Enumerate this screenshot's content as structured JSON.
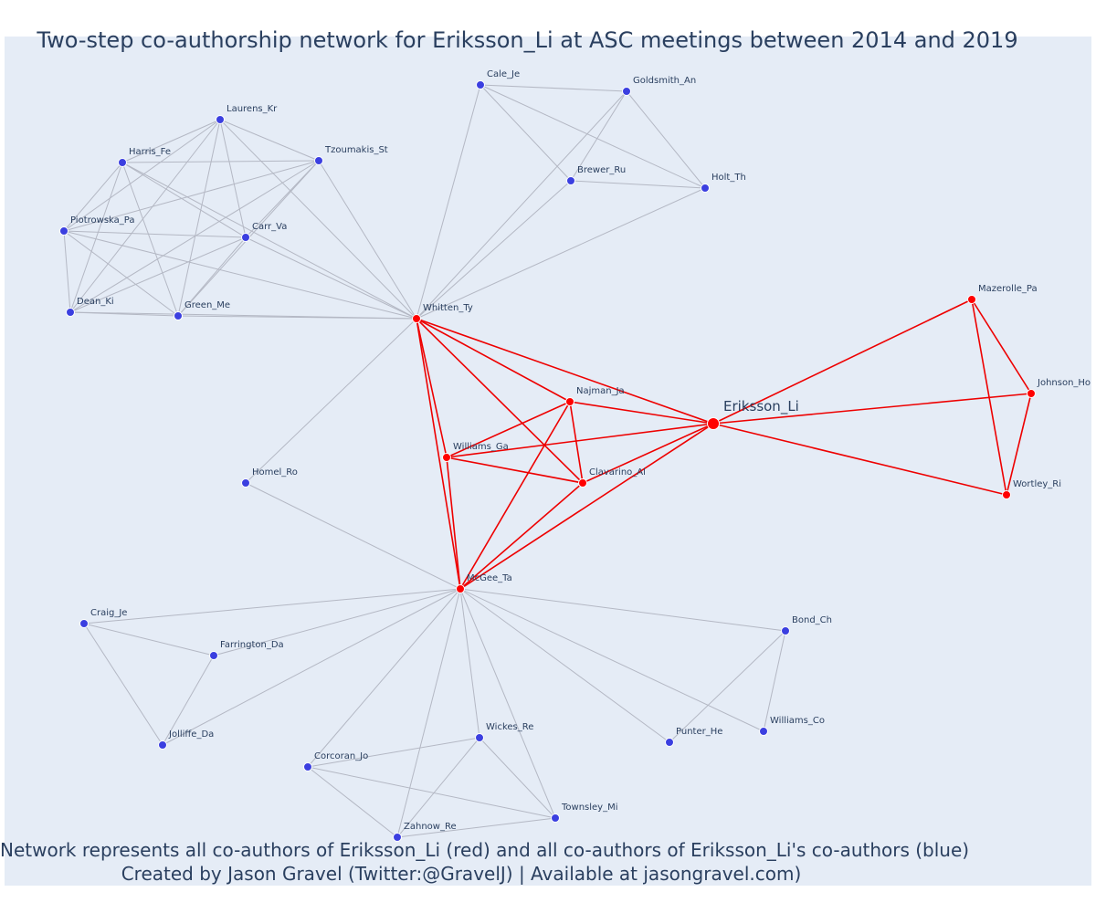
{
  "title": "Two-step co-authorship network for Eriksson_Li at ASC meetings between 2014 and 2019",
  "caption_line1": "Network represents all co-authors of Eriksson_Li (red) and all co-authors of Eriksson_Li's co-authors (blue)",
  "caption_line2": "Created by Jason Gravel (Twitter:@GravelJ) | Available at jasongravel.com)",
  "colors": {
    "ego": "#ff0000",
    "coauthor": "#ff0000",
    "second_step": "#3b3fe0",
    "red_edge": "#ee0000",
    "grey_edge": "#b4b8c4"
  },
  "nodes": [
    {
      "id": "Eriksson_Li",
      "group": "ego"
    },
    {
      "id": "Whitten_Ty",
      "group": "coauthor"
    },
    {
      "id": "Najman_Ja",
      "group": "coauthor"
    },
    {
      "id": "Williams_Ga",
      "group": "coauthor"
    },
    {
      "id": "Clavarino_Al",
      "group": "coauthor"
    },
    {
      "id": "McGee_Ta",
      "group": "coauthor"
    },
    {
      "id": "Mazerolle_Pa",
      "group": "coauthor"
    },
    {
      "id": "Johnson_Ho",
      "group": "coauthor"
    },
    {
      "id": "Wortley_Ri",
      "group": "coauthor"
    },
    {
      "id": "Cale_Je",
      "group": "second"
    },
    {
      "id": "Goldsmith_An",
      "group": "second"
    },
    {
      "id": "Brewer_Ru",
      "group": "second"
    },
    {
      "id": "Holt_Th",
      "group": "second"
    },
    {
      "id": "Laurens_Kr",
      "group": "second"
    },
    {
      "id": "Harris_Fe",
      "group": "second"
    },
    {
      "id": "Tzoumakis_St",
      "group": "second"
    },
    {
      "id": "Piotrowska_Pa",
      "group": "second"
    },
    {
      "id": "Carr_Va",
      "group": "second"
    },
    {
      "id": "Dean_Ki",
      "group": "second"
    },
    {
      "id": "Green_Me",
      "group": "second"
    },
    {
      "id": "Homel_Ro",
      "group": "second"
    },
    {
      "id": "Craig_Je",
      "group": "second"
    },
    {
      "id": "Farrington_Da",
      "group": "second"
    },
    {
      "id": "Jolliffe_Da",
      "group": "second"
    },
    {
      "id": "Bond_Ch",
      "group": "second"
    },
    {
      "id": "Williams_Co",
      "group": "second"
    },
    {
      "id": "Punter_He",
      "group": "second"
    },
    {
      "id": "Wickes_Re",
      "group": "second"
    },
    {
      "id": "Corcoran_Jo",
      "group": "second"
    },
    {
      "id": "Townsley_Mi",
      "group": "second"
    },
    {
      "id": "Zahnow_Re",
      "group": "second"
    }
  ],
  "edges": [
    [
      "Eriksson_Li",
      "Whitten_Ty",
      "red"
    ],
    [
      "Eriksson_Li",
      "Najman_Ja",
      "red"
    ],
    [
      "Eriksson_Li",
      "Williams_Ga",
      "red"
    ],
    [
      "Eriksson_Li",
      "Clavarino_Al",
      "red"
    ],
    [
      "Eriksson_Li",
      "McGee_Ta",
      "red"
    ],
    [
      "Eriksson_Li",
      "Mazerolle_Pa",
      "red"
    ],
    [
      "Eriksson_Li",
      "Johnson_Ho",
      "red"
    ],
    [
      "Eriksson_Li",
      "Wortley_Ri",
      "red"
    ],
    [
      "Mazerolle_Pa",
      "Johnson_Ho",
      "red"
    ],
    [
      "Mazerolle_Pa",
      "Wortley_Ri",
      "red"
    ],
    [
      "Johnson_Ho",
      "Wortley_Ri",
      "red"
    ],
    [
      "Whitten_Ty",
      "Najman_Ja",
      "red"
    ],
    [
      "Whitten_Ty",
      "Clavarino_Al",
      "red"
    ],
    [
      "Whitten_Ty",
      "McGee_Ta",
      "red"
    ],
    [
      "Najman_Ja",
      "Williams_Ga",
      "red"
    ],
    [
      "Najman_Ja",
      "Clavarino_Al",
      "red"
    ],
    [
      "Najman_Ja",
      "McGee_Ta",
      "red"
    ],
    [
      "Williams_Ga",
      "Clavarino_Al",
      "red"
    ],
    [
      "Williams_Ga",
      "McGee_Ta",
      "red"
    ],
    [
      "Clavarino_Al",
      "McGee_Ta",
      "red"
    ],
    [
      "Whitten_Ty",
      "Williams_Ga",
      "red"
    ],
    [
      "Whitten_Ty",
      "Cale_Je",
      "grey"
    ],
    [
      "Whitten_Ty",
      "Goldsmith_An",
      "grey"
    ],
    [
      "Whitten_Ty",
      "Brewer_Ru",
      "grey"
    ],
    [
      "Whitten_Ty",
      "Holt_Th",
      "grey"
    ],
    [
      "Whitten_Ty",
      "Laurens_Kr",
      "grey"
    ],
    [
      "Whitten_Ty",
      "Harris_Fe",
      "grey"
    ],
    [
      "Whitten_Ty",
      "Tzoumakis_St",
      "grey"
    ],
    [
      "Whitten_Ty",
      "Piotrowska_Pa",
      "grey"
    ],
    [
      "Whitten_Ty",
      "Carr_Va",
      "grey"
    ],
    [
      "Whitten_Ty",
      "Dean_Ki",
      "grey"
    ],
    [
      "Whitten_Ty",
      "Green_Me",
      "grey"
    ],
    [
      "Whitten_Ty",
      "Homel_Ro",
      "grey"
    ],
    [
      "Cale_Je",
      "Goldsmith_An",
      "grey"
    ],
    [
      "Cale_Je",
      "Brewer_Ru",
      "grey"
    ],
    [
      "Cale_Je",
      "Holt_Th",
      "grey"
    ],
    [
      "Goldsmith_An",
      "Brewer_Ru",
      "grey"
    ],
    [
      "Goldsmith_An",
      "Holt_Th",
      "grey"
    ],
    [
      "Brewer_Ru",
      "Holt_Th",
      "grey"
    ],
    [
      "Laurens_Kr",
      "Harris_Fe",
      "grey"
    ],
    [
      "Laurens_Kr",
      "Tzoumakis_St",
      "grey"
    ],
    [
      "Laurens_Kr",
      "Piotrowska_Pa",
      "grey"
    ],
    [
      "Laurens_Kr",
      "Carr_Va",
      "grey"
    ],
    [
      "Laurens_Kr",
      "Dean_Ki",
      "grey"
    ],
    [
      "Laurens_Kr",
      "Green_Me",
      "grey"
    ],
    [
      "Harris_Fe",
      "Tzoumakis_St",
      "grey"
    ],
    [
      "Harris_Fe",
      "Carr_Va",
      "grey"
    ],
    [
      "Harris_Fe",
      "Dean_Ki",
      "grey"
    ],
    [
      "Harris_Fe",
      "Green_Me",
      "grey"
    ],
    [
      "Harris_Fe",
      "Piotrowska_Pa",
      "grey"
    ],
    [
      "Tzoumakis_St",
      "Piotrowska_Pa",
      "grey"
    ],
    [
      "Tzoumakis_St",
      "Carr_Va",
      "grey"
    ],
    [
      "Tzoumakis_St",
      "Dean_Ki",
      "grey"
    ],
    [
      "Tzoumakis_St",
      "Green_Me",
      "grey"
    ],
    [
      "Piotrowska_Pa",
      "Carr_Va",
      "grey"
    ],
    [
      "Piotrowska_Pa",
      "Dean_Ki",
      "grey"
    ],
    [
      "Piotrowska_Pa",
      "Green_Me",
      "grey"
    ],
    [
      "Carr_Va",
      "Dean_Ki",
      "grey"
    ],
    [
      "Carr_Va",
      "Green_Me",
      "grey"
    ],
    [
      "Dean_Ki",
      "Green_Me",
      "grey"
    ],
    [
      "McGee_Ta",
      "Homel_Ro",
      "grey"
    ],
    [
      "McGee_Ta",
      "Craig_Je",
      "grey"
    ],
    [
      "McGee_Ta",
      "Farrington_Da",
      "grey"
    ],
    [
      "McGee_Ta",
      "Jolliffe_Da",
      "grey"
    ],
    [
      "McGee_Ta",
      "Bond_Ch",
      "grey"
    ],
    [
      "McGee_Ta",
      "Williams_Co",
      "grey"
    ],
    [
      "McGee_Ta",
      "Punter_He",
      "grey"
    ],
    [
      "McGee_Ta",
      "Wickes_Re",
      "grey"
    ],
    [
      "McGee_Ta",
      "Corcoran_Jo",
      "grey"
    ],
    [
      "McGee_Ta",
      "Townsley_Mi",
      "grey"
    ],
    [
      "McGee_Ta",
      "Zahnow_Re",
      "grey"
    ],
    [
      "Craig_Je",
      "Farrington_Da",
      "grey"
    ],
    [
      "Craig_Je",
      "Jolliffe_Da",
      "grey"
    ],
    [
      "Farrington_Da",
      "Jolliffe_Da",
      "grey"
    ],
    [
      "Bond_Ch",
      "Williams_Co",
      "grey"
    ],
    [
      "Bond_Ch",
      "Punter_He",
      "grey"
    ],
    [
      "Wickes_Re",
      "Corcoran_Jo",
      "grey"
    ],
    [
      "Wickes_Re",
      "Townsley_Mi",
      "grey"
    ],
    [
      "Wickes_Re",
      "Zahnow_Re",
      "grey"
    ],
    [
      "Corcoran_Jo",
      "Townsley_Mi",
      "grey"
    ],
    [
      "Corcoran_Jo",
      "Zahnow_Re",
      "grey"
    ],
    [
      "Townsley_Mi",
      "Zahnow_Re",
      "grey"
    ]
  ]
}
